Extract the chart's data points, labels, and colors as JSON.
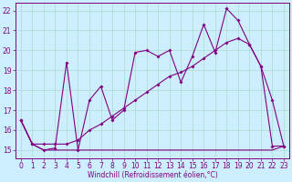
{
  "xlabel": "Windchill (Refroidissement éolien,°C)",
  "background_color": "#cceeff",
  "grid_color": "#aaddcc",
  "line_color": "#800080",
  "xlim": [
    -0.5,
    23.5
  ],
  "ylim": [
    14.6,
    22.4
  ],
  "yticks": [
    15,
    16,
    17,
    18,
    19,
    20,
    21,
    22
  ],
  "xticks": [
    0,
    1,
    2,
    3,
    4,
    5,
    6,
    7,
    8,
    9,
    10,
    11,
    12,
    13,
    14,
    15,
    16,
    17,
    18,
    19,
    20,
    21,
    22,
    23
  ],
  "series1_x": [
    0,
    1,
    2,
    3,
    4,
    5,
    6,
    7,
    8,
    9,
    10,
    11,
    12,
    13,
    14,
    15,
    16,
    17,
    18,
    19,
    20,
    21,
    22,
    23
  ],
  "series1_y": [
    16.5,
    15.3,
    15.0,
    15.1,
    19.4,
    15.0,
    17.5,
    18.2,
    16.5,
    17.0,
    19.9,
    20.0,
    19.7,
    20.0,
    18.4,
    19.7,
    21.3,
    19.9,
    22.1,
    21.5,
    20.3,
    19.2,
    17.5,
    15.2
  ],
  "series2_x": [
    0,
    1,
    2,
    3,
    4,
    5,
    6,
    7,
    8,
    9,
    10,
    11,
    12,
    13,
    14,
    15,
    16,
    17,
    18,
    19,
    20,
    21,
    22,
    23
  ],
  "series2_y": [
    16.5,
    15.3,
    15.3,
    15.3,
    15.3,
    15.5,
    16.0,
    16.3,
    16.7,
    17.1,
    17.5,
    17.9,
    18.3,
    18.7,
    18.9,
    19.2,
    19.6,
    20.0,
    20.4,
    20.6,
    20.3,
    19.2,
    15.2,
    15.2
  ],
  "series3_x": [
    0,
    1,
    2,
    3,
    4,
    5,
    6,
    7,
    8,
    9,
    10,
    11,
    12,
    13,
    14,
    15,
    16,
    17,
    18,
    19,
    20,
    21,
    22,
    23
  ],
  "series3_y": [
    16.5,
    15.3,
    15.0,
    15.0,
    15.0,
    15.0,
    15.0,
    15.0,
    15.0,
    15.0,
    15.0,
    15.0,
    15.0,
    15.0,
    15.0,
    15.0,
    15.0,
    15.0,
    15.0,
    15.0,
    15.0,
    15.0,
    15.0,
    15.2
  ],
  "xlabel_fontsize": 5.5,
  "tick_fontsize": 5.5
}
